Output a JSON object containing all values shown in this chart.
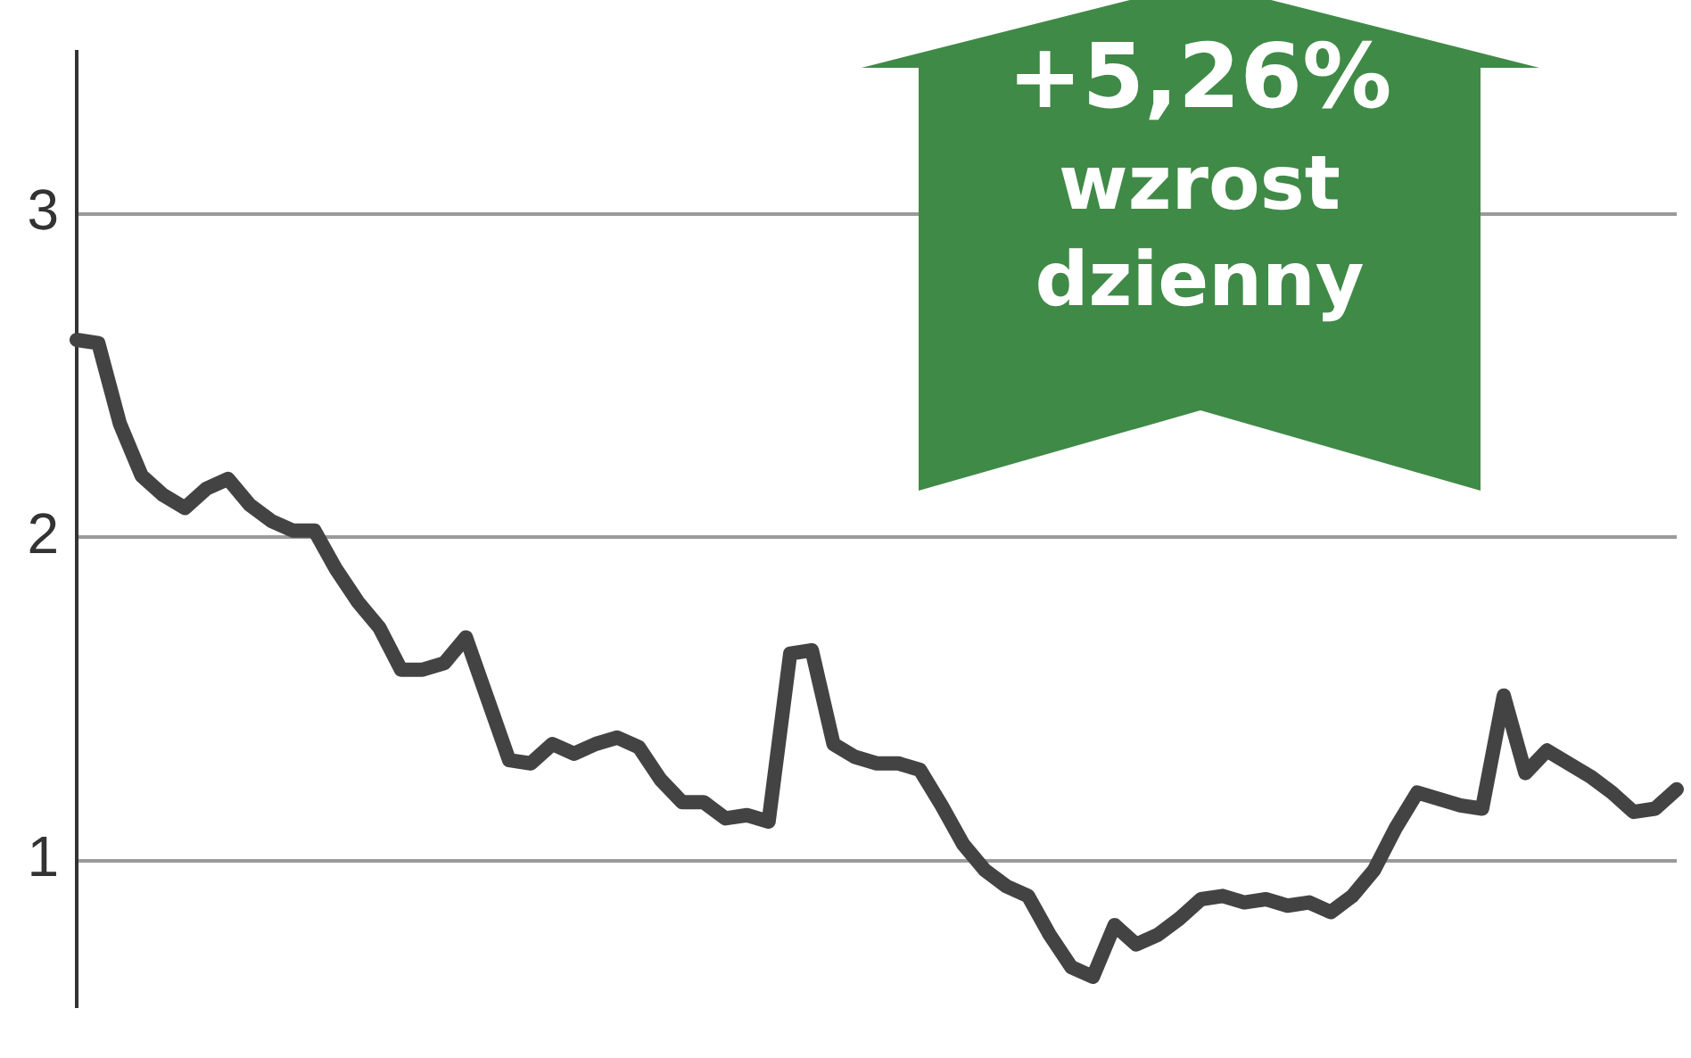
{
  "chart_data": {
    "type": "line",
    "categories": [
      null,
      null,
      null,
      null,
      null,
      null,
      null,
      null,
      null,
      null,
      null,
      null,
      null,
      null,
      null,
      null,
      null,
      null,
      null,
      null,
      null,
      null,
      null,
      null,
      null,
      null,
      null,
      null,
      null,
      null,
      null,
      null,
      null,
      null,
      null,
      null,
      null,
      null,
      null,
      null,
      null,
      null,
      null,
      null,
      null,
      null,
      null,
      null,
      null,
      null,
      null,
      null,
      null,
      null,
      null,
      null,
      null,
      null,
      null,
      null,
      null,
      null,
      null,
      null,
      null,
      null,
      null,
      null,
      null,
      null,
      null,
      null,
      null,
      null,
      null
    ],
    "series": [
      {
        "color": "#434343",
        "values": [
          2.61,
          2.6,
          2.35,
          2.19,
          2.13,
          2.09,
          2.15,
          2.18,
          2.1,
          2.05,
          2.02,
          2.02,
          1.9,
          1.8,
          1.72,
          1.59,
          1.59,
          1.61,
          1.69,
          1.5,
          1.31,
          1.3,
          1.36,
          1.33,
          1.36,
          1.38,
          1.35,
          1.25,
          1.18,
          1.18,
          1.13,
          1.14,
          1.12,
          1.64,
          1.65,
          1.36,
          1.32,
          1.3,
          1.3,
          1.28,
          1.17,
          1.05,
          0.97,
          0.92,
          0.89,
          0.77,
          0.67,
          0.64,
          0.8,
          0.74,
          0.77,
          0.82,
          0.88,
          0.89,
          0.87,
          0.88,
          0.86,
          0.87,
          0.84,
          0.89,
          0.97,
          1.1,
          1.21,
          1.19,
          1.17,
          1.16,
          1.51,
          1.27,
          1.34,
          1.3,
          1.26,
          1.21,
          1.15,
          1.16,
          1.22
        ]
      }
    ],
    "ylim": [
      0.55,
      3.5
    ],
    "yticks": [
      1,
      2,
      3
    ],
    "grid": "y",
    "tick_labels": "y",
    "marker": "none",
    "line_style": "solid",
    "annotations": [
      "+5,26%",
      "wzrost dzienny"
    ]
  }
}
